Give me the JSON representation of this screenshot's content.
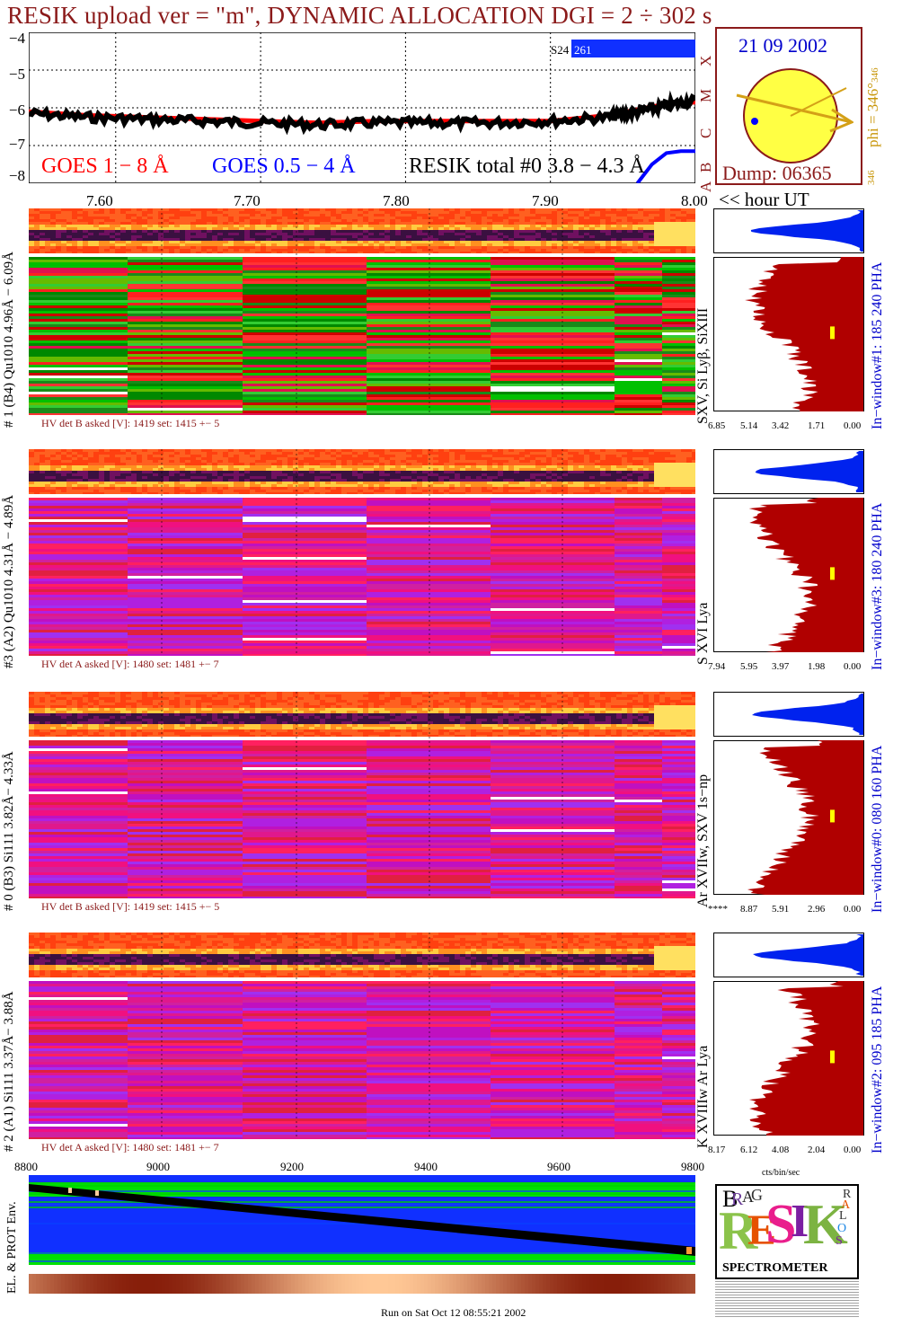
{
  "title": "RESIK upload ver = \"m\", DYNAMIC ALLOCATION  DGI =   2 ÷ 302 s",
  "top_plot": {
    "y_ticks": [
      "−4",
      "−5",
      "−6",
      "−7",
      "−8"
    ],
    "legend_goes18": "GOES 1 − 8 Å",
    "legend_goes054": "GOES 0.5 − 4 Å",
    "legend_resik": "RESIK total #0  3.8 − 4.3 Å",
    "saa_label": "S24",
    "saa_value": "261",
    "goes_class_letters": [
      "X",
      "M",
      "C",
      "B",
      "A"
    ],
    "hour_ticks": [
      "7.60",
      "7.70",
      "7.80",
      "7.90",
      "8.00"
    ],
    "hour_label": "<< hour UT",
    "colors": {
      "goes18": "#ff0000",
      "goes054": "#0000ff",
      "resik": "#000000",
      "title": "#8b1a1a"
    }
  },
  "sun_panel": {
    "date": "21 09 2002",
    "dump": "Dump: 06365",
    "phi_label": "phi = 346°",
    "phi_sup": "346",
    "phi_bottom": "346",
    "colors": {
      "disk": "#ffff44",
      "border": "#8b1a1a",
      "arrow": "#d4a017",
      "spot": "#0000ff",
      "text_blue": "#0000cc",
      "text_gold": "#c8960a"
    }
  },
  "panels": [
    {
      "left_label": "# 1 (B4) Qu1010 4.96Å − 6.09Å",
      "line_label": "SXV, Si Lyβ, SiXIII",
      "window_label": "In−window#1:  185 240 PHA",
      "hv_text": "HV det B asked [V]:  1419 set:  1415  +−    5",
      "profile_ticks": [
        "6.85",
        "5.14",
        "3.42",
        "1.71",
        "0.00"
      ],
      "base": "green"
    },
    {
      "left_label": "#3 (A2) Qu1010  4.31Å − 4.89Å",
      "line_label": "S XVI Lya",
      "window_label": "In−window#3:  180 240 PHA",
      "hv_text": "HV det A asked [V]:  1480 set:  1481  +−    7",
      "profile_ticks": [
        "7.94",
        "5.95",
        "3.97",
        "1.98",
        "0.00"
      ],
      "base": "magenta"
    },
    {
      "left_label": "# 0 (B3) Si111  3.82Å− 4.33Å",
      "line_label": "Ar XVIIw, SXV 1s−np",
      "window_label": "In−window#0:  080 160 PHA",
      "hv_text": "HV det B asked [V]:  1419 set:  1415  +−    5",
      "profile_ticks": [
        "****",
        "8.87",
        "5.91",
        "2.96",
        "0.00"
      ],
      "base": "magenta"
    },
    {
      "left_label": "# 2 (A1) Si111  3.37Å− 3.88Å",
      "line_label": "K XVIIIw  Ar Lya",
      "window_label": "In−window#2:  095 185 PHA",
      "hv_text": "HV det A asked [V]:  1480 set:  1481  +−    7",
      "profile_ticks": [
        "8.17",
        "6.12",
        "4.08",
        "2.04",
        "0.00"
      ],
      "base": "magenta"
    }
  ],
  "profile_axis_label": "cts/bin/sec",
  "bottom": {
    "x_ticks": [
      "8800",
      "9000",
      "9200",
      "9400",
      "9600",
      "9800"
    ],
    "y_label": "EL. & PROT Env.",
    "footer": "Run on Sat Oct 12 08:55:21 2002"
  },
  "logo": {
    "letters": [
      "B",
      "R",
      "A",
      "G",
      "R",
      "E",
      "S",
      "I",
      "K",
      "S",
      "O",
      "L",
      "A",
      "R"
    ],
    "caption": "SPECTROMETER"
  },
  "chart_data": {
    "type": "line",
    "title": "RESIK upload ver = \"m\", DYNAMIC ALLOCATION  DGI =   2 ÷ 302 s",
    "xlabel": "hour UT",
    "ylabel": "",
    "xlim": [
      7.54,
      8.0
    ],
    "ylim": [
      -8,
      -4
    ],
    "x_ticks": [
      7.6,
      7.7,
      7.8,
      7.9,
      8.0
    ],
    "y_ticks": [
      -4,
      -5,
      -6,
      -7,
      -8
    ],
    "grid": true,
    "series": [
      {
        "name": "GOES 1 − 8 Å",
        "x": [
          7.54,
          7.58,
          7.62,
          7.66,
          7.7,
          7.74,
          7.78,
          7.82,
          7.86,
          7.9,
          7.94,
          7.96,
          7.98,
          8.0
        ],
        "values": [
          -6.1,
          -6.2,
          -6.25,
          -6.3,
          -6.35,
          -6.4,
          -6.35,
          -6.35,
          -6.35,
          -6.35,
          -6.2,
          -6.05,
          -5.9,
          -5.85
        ]
      },
      {
        "name": "GOES 0.5 − 4 Å",
        "x": [
          7.96,
          7.97,
          7.98,
          7.99,
          8.0
        ],
        "values": [
          -8.0,
          -7.5,
          -7.2,
          -7.15,
          -7.15
        ]
      },
      {
        "name": "RESIK total #0  3.8 − 4.3 Å",
        "x": [
          7.54,
          7.58,
          7.62,
          7.66,
          7.7,
          7.74,
          7.78,
          7.82,
          7.86,
          7.9,
          7.94,
          7.96,
          7.98,
          8.0
        ],
        "values": [
          -6.15,
          -6.25,
          -6.3,
          -6.35,
          -6.4,
          -6.45,
          -6.4,
          -6.4,
          -6.4,
          -6.35,
          -6.25,
          -6.1,
          -5.95,
          -5.8
        ]
      }
    ]
  }
}
